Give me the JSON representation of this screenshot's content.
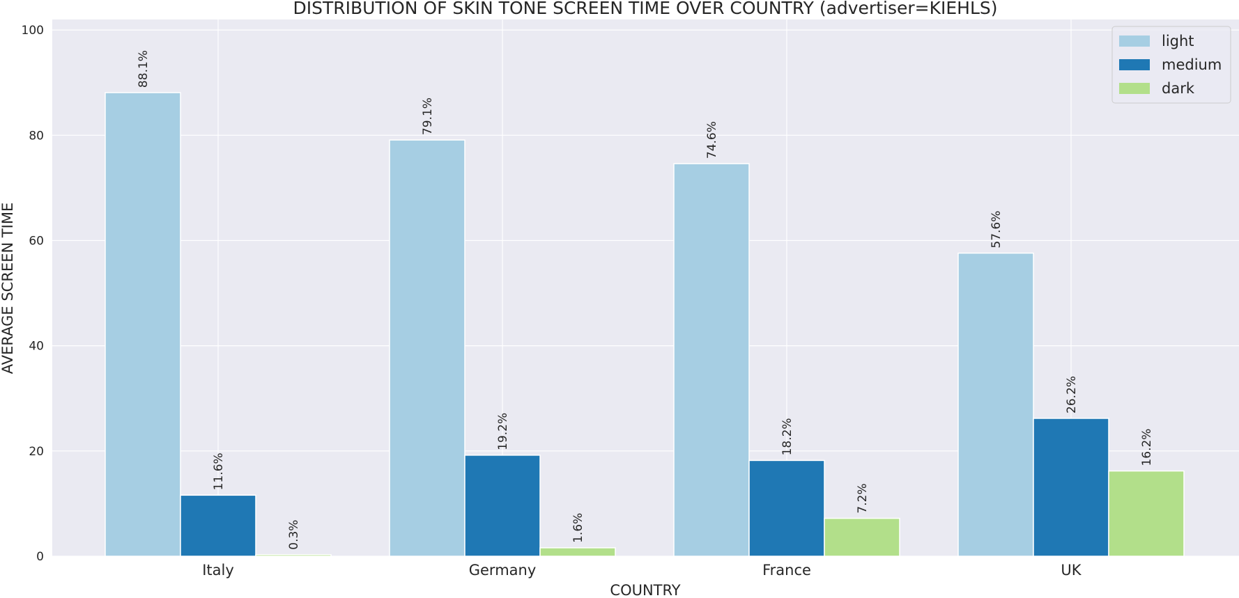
{
  "chart_data": {
    "type": "bar",
    "title": "DISTRIBUTION OF SKIN TONE SCREEN TIME OVER COUNTRY (advertiser=KIEHLS)",
    "xlabel": "COUNTRY",
    "ylabel": "AVERAGE SCREEN TIME",
    "categories": [
      "Italy",
      "Germany",
      "France",
      "UK"
    ],
    "ylim": [
      0,
      102
    ],
    "yticks": [
      0,
      20,
      40,
      60,
      80,
      100
    ],
    "grid": true,
    "legend_position": "top-right",
    "series": [
      {
        "name": "light",
        "color": "#a6cee3",
        "values": [
          88.1,
          79.1,
          74.6,
          57.6
        ],
        "labels": [
          "88.1%",
          "79.1%",
          "74.6%",
          "57.6%"
        ]
      },
      {
        "name": "medium",
        "color": "#1f78b4",
        "values": [
          11.6,
          19.2,
          18.2,
          26.2
        ],
        "labels": [
          "11.6%",
          "19.2%",
          "18.2%",
          "26.2%"
        ]
      },
      {
        "name": "dark",
        "color": "#b2df8a",
        "values": [
          0.3,
          1.6,
          7.2,
          16.2
        ],
        "labels": [
          "0.3%",
          "1.6%",
          "7.2%",
          "16.2%"
        ]
      }
    ],
    "colors": {
      "plot_background": "#eaeaf2",
      "grid": "#ffffff"
    }
  }
}
